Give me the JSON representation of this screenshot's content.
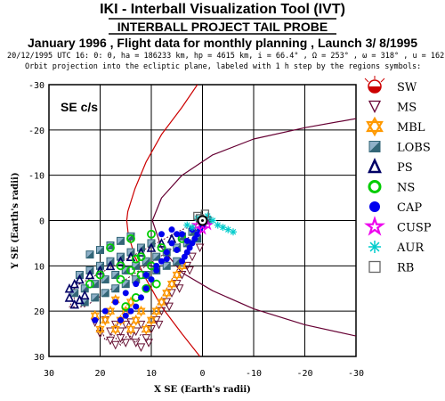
{
  "header": {
    "title": "IKI - Interball Visualization Tool (IVT)",
    "subtitle": "INTERBALL PROJECT TAIL PROBE",
    "mission_line": "January 1996 ,  Flight data for monthly planning ,   Launch  3/ 8/1995",
    "orbit_line": "20/12/1995 UTC 16: 0: 0, ha = 186233 km, hp =   4615 km, i = 66.4° , Ω = 253° , ω = 318° , u = 162°",
    "note_line": "Orbit projection into the ecliptic plane, labeled with 1 h step by the regions symbols:"
  },
  "plot": {
    "frame_label": "SE c/s",
    "xlabel": "X SE (Earth's radii)",
    "ylabel": "Y SE (Earth's radii)"
  },
  "colors": {
    "grid": "#000000",
    "bow_shock": "#cc0000",
    "magnetopause": "#660033",
    "orbit": "#661133",
    "blue": "#0000ee",
    "green": "#00cc00",
    "orange": "#ff9900",
    "teal": "#336677",
    "navy": "#000066"
  },
  "legend": [
    {
      "symbol": "SW",
      "icon": "half-filled-circle",
      "color": "#cc0000"
    },
    {
      "symbol": "MS",
      "icon": "down-triangle-outline",
      "color": "#660033"
    },
    {
      "symbol": "MBL",
      "icon": "star-of-david",
      "color": "#ff9900"
    },
    {
      "symbol": "LOBS",
      "icon": "half-shaded-square",
      "color": "#336677"
    },
    {
      "symbol": "PS",
      "icon": "up-triangle-outline",
      "color": "#000066"
    },
    {
      "symbol": "NS",
      "icon": "circle-outline",
      "color": "#00cc00"
    },
    {
      "symbol": "CAP",
      "icon": "filled-circle",
      "color": "#0000ee"
    },
    {
      "symbol": "CUSP",
      "icon": "star-outline",
      "color": "#ee00ee"
    },
    {
      "symbol": "AUR",
      "icon": "asterisk",
      "color": "#00cccc"
    },
    {
      "symbol": "RB",
      "icon": "square-outline",
      "color": "#666666"
    }
  ],
  "chart_data": {
    "type": "scatter",
    "xlabel": "X SE (Earth's radii)",
    "ylabel": "Y SE (Earth's radii)",
    "xlim": [
      30,
      -30
    ],
    "ylim": [
      -30,
      30
    ],
    "x_ticks": [
      30,
      20,
      10,
      0,
      -10,
      -20,
      -30
    ],
    "y_ticks": [
      -30,
      -20,
      -10,
      0,
      10,
      20,
      30
    ],
    "grid": true,
    "legend_position": "right",
    "boundaries": [
      {
        "name": "bow shock",
        "color": "#cc0000",
        "points": [
          [
            1.0,
            -30
          ],
          [
            4,
            -25
          ],
          [
            8,
            -19
          ],
          [
            11,
            -13
          ],
          [
            13.2,
            -7
          ],
          [
            14.6,
            -2
          ],
          [
            14.8,
            0
          ],
          [
            14.5,
            3
          ],
          [
            13.2,
            8
          ],
          [
            11,
            13
          ],
          [
            8,
            19
          ],
          [
            4,
            25
          ],
          [
            0.5,
            30
          ]
        ]
      },
      {
        "name": "magnetopause",
        "color": "#660033",
        "points": [
          [
            -30,
            -22.5
          ],
          [
            -20,
            -20.5
          ],
          [
            -10,
            -18
          ],
          [
            -2,
            -14.5
          ],
          [
            4,
            -10
          ],
          [
            8,
            -5
          ],
          [
            9.8,
            0
          ],
          [
            8,
            6
          ],
          [
            4,
            11.5
          ],
          [
            -2,
            15.5
          ],
          [
            -10,
            19.5
          ],
          [
            -20,
            23
          ],
          [
            -30,
            25.5
          ]
        ]
      }
    ],
    "series": [
      {
        "name": "MS",
        "color": "#661133",
        "marker": "down-triangle",
        "points": [
          [
            2,
            8
          ],
          [
            3,
            10
          ],
          [
            4,
            12
          ],
          [
            5,
            14
          ],
          [
            6,
            16
          ],
          [
            7,
            18
          ],
          [
            8,
            20
          ],
          [
            9,
            22
          ],
          [
            10,
            24
          ],
          [
            11,
            26
          ],
          [
            12,
            28
          ],
          [
            0.5,
            6
          ],
          [
            2.5,
            11
          ],
          [
            4.5,
            15
          ],
          [
            6.5,
            19
          ],
          [
            8.5,
            23
          ],
          [
            10.5,
            27
          ],
          [
            13,
            27
          ],
          [
            14,
            25.5
          ],
          [
            15,
            27
          ],
          [
            16,
            26
          ],
          [
            17,
            27.5
          ],
          [
            18,
            26.5
          ],
          [
            18,
            24.5
          ],
          [
            17,
            23
          ],
          [
            16,
            24.5
          ],
          [
            15,
            23
          ],
          [
            14,
            22.5
          ],
          [
            13,
            24.5
          ],
          [
            12,
            23
          ],
          [
            20,
            25
          ],
          [
            19,
            22
          ],
          [
            21,
            22.5
          ]
        ]
      },
      {
        "name": "MBL",
        "color": "#ff9900",
        "marker": "star-of-david",
        "points": [
          [
            4,
            10
          ],
          [
            5,
            12
          ],
          [
            6,
            14
          ],
          [
            7,
            16
          ],
          [
            8,
            18
          ],
          [
            9,
            20
          ],
          [
            10,
            22
          ],
          [
            11,
            24
          ],
          [
            12,
            20
          ],
          [
            13,
            22
          ],
          [
            14,
            24
          ],
          [
            15,
            20
          ],
          [
            16,
            22
          ],
          [
            17,
            24
          ],
          [
            18,
            20
          ],
          [
            19,
            22
          ],
          [
            20,
            24
          ],
          [
            21,
            21
          ],
          [
            14,
            18
          ],
          [
            17,
            17.5
          ]
        ]
      },
      {
        "name": "LOBS",
        "color": "#336677",
        "marker": "half-square",
        "points": [
          [
            1,
            4
          ],
          [
            3,
            5
          ],
          [
            5,
            6
          ],
          [
            7,
            7
          ],
          [
            9,
            8
          ],
          [
            11,
            9
          ],
          [
            13,
            10
          ],
          [
            15,
            11
          ],
          [
            17,
            12
          ],
          [
            19,
            13
          ],
          [
            21,
            14
          ],
          [
            23,
            15
          ],
          [
            25,
            16
          ],
          [
            5,
            9
          ],
          [
            7,
            10
          ],
          [
            9,
            11
          ],
          [
            11,
            12
          ],
          [
            13,
            13
          ],
          [
            15,
            14
          ],
          [
            17,
            15
          ],
          [
            19,
            16
          ],
          [
            21,
            17
          ],
          [
            23,
            18
          ],
          [
            10,
            5
          ],
          [
            12,
            6
          ],
          [
            14,
            7
          ],
          [
            16,
            8
          ],
          [
            18,
            9
          ],
          [
            20,
            10
          ],
          [
            22,
            11
          ],
          [
            24,
            12
          ],
          [
            14,
            3.5
          ],
          [
            16,
            4.5
          ],
          [
            18,
            5.5
          ],
          [
            20,
            6.5
          ],
          [
            22,
            7.5
          ],
          [
            -1,
            0
          ],
          [
            0,
            1
          ],
          [
            2,
            2.5
          ],
          [
            4,
            3.5
          ]
        ]
      },
      {
        "name": "PS",
        "color": "#000066",
        "marker": "up-triangle",
        "points": [
          [
            6,
            4
          ],
          [
            8,
            5
          ],
          [
            10,
            6
          ],
          [
            12,
            7
          ],
          [
            14,
            8
          ],
          [
            16,
            9
          ],
          [
            18,
            10
          ],
          [
            20,
            11
          ],
          [
            22,
            12
          ],
          [
            24,
            13
          ],
          [
            25,
            14
          ],
          [
            26,
            15
          ],
          [
            26,
            17
          ],
          [
            25,
            18.5
          ],
          [
            24,
            17.5
          ],
          [
            23,
            16.5
          ]
        ]
      },
      {
        "name": "NS",
        "color": "#00cc00",
        "marker": "circle",
        "points": [
          [
            4,
            4
          ],
          [
            8,
            6
          ],
          [
            12,
            8
          ],
          [
            16,
            10
          ],
          [
            20,
            12
          ],
          [
            10,
            3
          ],
          [
            14,
            4
          ],
          [
            18,
            6
          ],
          [
            13,
            8.5
          ],
          [
            12,
            12
          ],
          [
            9,
            14
          ],
          [
            11,
            15
          ],
          [
            13,
            17
          ],
          [
            15,
            19
          ],
          [
            14,
            11
          ],
          [
            16,
            13
          ],
          [
            10,
            10
          ],
          [
            22,
            14
          ]
        ]
      },
      {
        "name": "CAP",
        "color": "#0000ee",
        "marker": "filled-circle",
        "points": [
          [
            0,
            1
          ],
          [
            0.5,
            2
          ],
          [
            1,
            3
          ],
          [
            1.5,
            4
          ],
          [
            2,
            5
          ],
          [
            2.5,
            6
          ],
          [
            3,
            7
          ],
          [
            3.5,
            8
          ],
          [
            4,
            9
          ],
          [
            5,
            3
          ],
          [
            6,
            5
          ],
          [
            7,
            7
          ],
          [
            8,
            9
          ],
          [
            9,
            11
          ],
          [
            10,
            13
          ],
          [
            11,
            15
          ],
          [
            12,
            17
          ],
          [
            13,
            19
          ],
          [
            14,
            20
          ],
          [
            15,
            21
          ],
          [
            16,
            22
          ],
          [
            2,
            2
          ],
          [
            4,
            3
          ],
          [
            6,
            2
          ],
          [
            8,
            3
          ],
          [
            3,
            4.5
          ],
          [
            5,
            6.5
          ],
          [
            7,
            8.5
          ],
          [
            9,
            10
          ],
          [
            11,
            12
          ],
          [
            13,
            14
          ],
          [
            15,
            16
          ],
          [
            17,
            18
          ],
          [
            19,
            20
          ],
          [
            21,
            22
          ]
        ]
      },
      {
        "name": "CUSP",
        "color": "#ee00ee",
        "marker": "star",
        "points": [
          [
            1,
            1
          ],
          [
            -1,
            1
          ],
          [
            0,
            2
          ]
        ]
      },
      {
        "name": "AUR",
        "color": "#00cccc",
        "marker": "asterisk",
        "points": [
          [
            -2,
            0
          ],
          [
            -3,
            1
          ],
          [
            -4,
            1.5
          ],
          [
            -5,
            2
          ],
          [
            -6,
            2.5
          ],
          [
            -1,
            -1
          ],
          [
            1,
            -0.5
          ],
          [
            2,
            1.5
          ],
          [
            3,
            1
          ]
        ]
      },
      {
        "name": "RB",
        "color": "#666666",
        "marker": "square",
        "points": [
          [
            1,
            -1
          ],
          [
            -0.5,
            -1.5
          ],
          [
            0.5,
            -0.5
          ]
        ]
      }
    ],
    "orbit_traces": [
      [
        [
          -1,
          0
        ],
        [
          1,
          3
        ],
        [
          3,
          7
        ],
        [
          5,
          11
        ],
        [
          7,
          15
        ],
        [
          9,
          19
        ],
        [
          11,
          23
        ],
        [
          13,
          27
        ],
        [
          14.5,
          25
        ],
        [
          16,
          27.5
        ],
        [
          17.5,
          25
        ],
        [
          19,
          26.5
        ],
        [
          20,
          23
        ]
      ],
      [
        [
          -1,
          0
        ],
        [
          3,
          4
        ],
        [
          7,
          7
        ],
        [
          11,
          10
        ],
        [
          15,
          13
        ],
        [
          19,
          16
        ],
        [
          23,
          19
        ],
        [
          26,
          19
        ],
        [
          25,
          17
        ]
      ],
      [
        [
          -1,
          0
        ],
        [
          4,
          2
        ],
        [
          9,
          5
        ],
        [
          14,
          8
        ],
        [
          19,
          11
        ],
        [
          24,
          14
        ],
        [
          26,
          16
        ]
      ]
    ]
  }
}
